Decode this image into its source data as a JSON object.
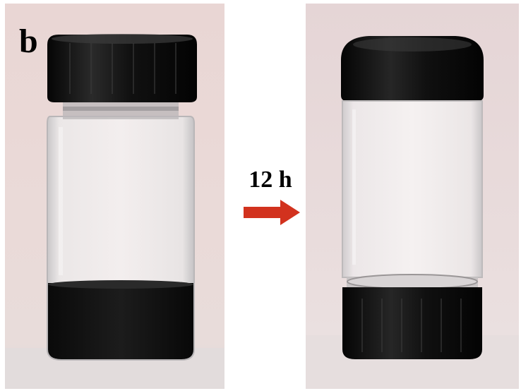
{
  "figure": {
    "panel_letter": "b",
    "duration_label": "12 h"
  },
  "colors": {
    "arrow": "#d2321e",
    "background": "#ffffff",
    "dispersion": "#141414"
  }
}
